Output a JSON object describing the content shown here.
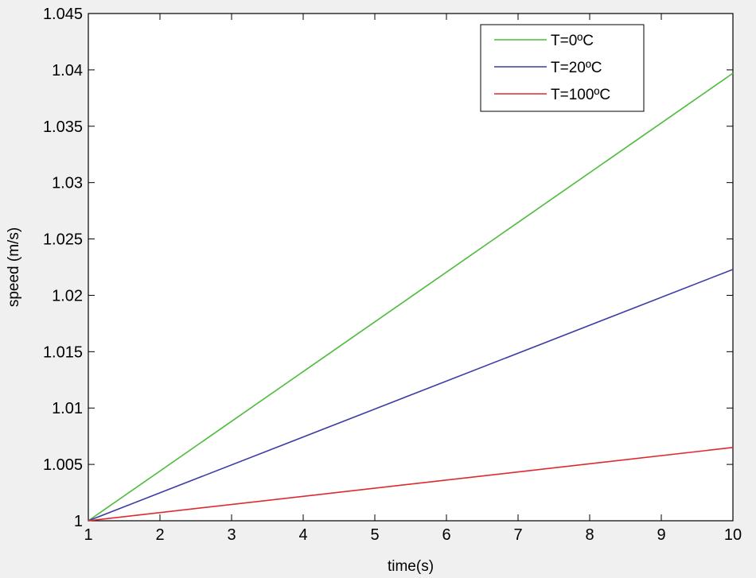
{
  "chart_data": {
    "type": "line",
    "title": "",
    "xlabel": "time(s)",
    "ylabel": "speed (m/s)",
    "xlim": [
      1,
      10
    ],
    "ylim": [
      1,
      1.045
    ],
    "xticks": [
      "1",
      "2",
      "3",
      "4",
      "5",
      "6",
      "7",
      "8",
      "9",
      "10"
    ],
    "yticks": [
      "1",
      "1.005",
      "1.01",
      "1.015",
      "1.02",
      "1.025",
      "1.03",
      "1.035",
      "1.04",
      "1.045"
    ],
    "grid": false,
    "legend_position": "top-right",
    "series": [
      {
        "name": "T=0ºC",
        "color": "#4dbb3c",
        "x": [
          1,
          10
        ],
        "y": [
          1,
          1.0397
        ]
      },
      {
        "name": "T=20ºC",
        "color": "#3c3ca5",
        "x": [
          1,
          10
        ],
        "y": [
          1,
          1.0223
        ]
      },
      {
        "name": "T=100ºC",
        "color": "#e0282c",
        "x": [
          1,
          10
        ],
        "y": [
          1,
          1.0065
        ]
      }
    ]
  }
}
